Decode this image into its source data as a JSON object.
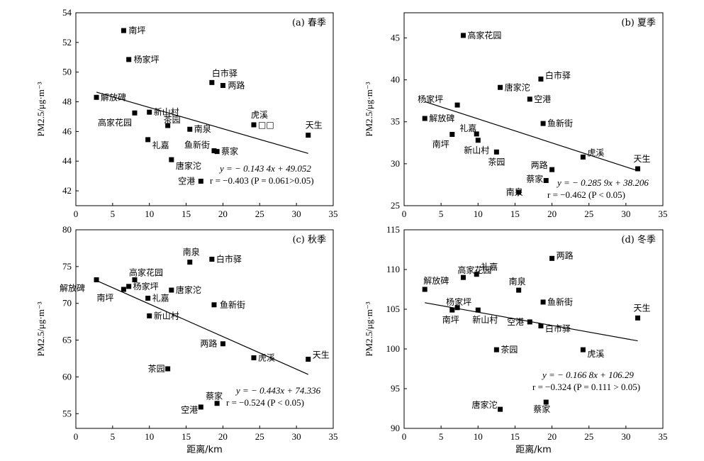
{
  "chart_data": [
    {
      "type": "scatter",
      "panel_label": "(a) 春季",
      "xlim": [
        0,
        35
      ],
      "ylim": [
        41,
        54
      ],
      "xticks": [
        0,
        5,
        10,
        15,
        20,
        25,
        30,
        35
      ],
      "yticks": [
        42,
        44,
        46,
        48,
        50,
        52,
        54
      ],
      "ylabel": "PM2.5/μg·m⁻³",
      "xlabel": "",
      "points": [
        {
          "name": "南坪",
          "x": 6.5,
          "y": 52.8
        },
        {
          "name": "杨家坪",
          "x": 7.2,
          "y": 50.85
        },
        {
          "name": "白市驿",
          "x": 18.5,
          "y": 49.3
        },
        {
          "name": "两路",
          "x": 20.0,
          "y": 49.1
        },
        {
          "name": "解放碑",
          "x": 2.8,
          "y": 48.3
        },
        {
          "name": "高家花园",
          "x": 8.0,
          "y": 47.25
        },
        {
          "name": "新山村",
          "x": 10.0,
          "y": 47.3
        },
        {
          "name": "虎溪",
          "x": 24.2,
          "y": 46.45
        },
        {
          "name": "□□",
          "x": 24.2,
          "y": 46.45
        },
        {
          "name": "茶园",
          "x": 12.5,
          "y": 46.4
        },
        {
          "name": "南泉",
          "x": 15.5,
          "y": 46.15
        },
        {
          "name": "天生",
          "x": 31.6,
          "y": 45.75
        },
        {
          "name": "礼嘉",
          "x": 9.8,
          "y": 45.45
        },
        {
          "name": "鱼新街",
          "x": 18.8,
          "y": 44.7
        },
        {
          "name": "蔡家",
          "x": 19.2,
          "y": 44.65
        },
        {
          "name": "唐家沱",
          "x": 13.0,
          "y": 44.1
        },
        {
          "name": "空港",
          "x": 17.0,
          "y": 42.65
        }
      ],
      "fit": {
        "slope": -0.1434,
        "intercept": 49.052,
        "x_range": [
          2.8,
          31.6
        ]
      },
      "equation": "y = − 0.143 4x + 49.052",
      "stats": "r = −0.403 (P = 0.061>0.05)"
    },
    {
      "type": "scatter",
      "panel_label": "(b) 夏季",
      "xlim": [
        0,
        35
      ],
      "ylim": [
        25,
        48
      ],
      "xticks": [
        0,
        5,
        10,
        15,
        20,
        25,
        30,
        35
      ],
      "yticks": [
        25,
        30,
        35,
        40,
        45
      ],
      "ylabel": "PM2.5/μg·m⁻³",
      "xlabel": "",
      "points": [
        {
          "name": "高家花园",
          "x": 8.0,
          "y": 45.3
        },
        {
          "name": "白市驿",
          "x": 18.5,
          "y": 40.1
        },
        {
          "name": "唐家沱",
          "x": 13.0,
          "y": 39.1
        },
        {
          "name": "空港",
          "x": 17.0,
          "y": 37.7
        },
        {
          "name": "杨家坪",
          "x": 7.2,
          "y": 37.0
        },
        {
          "name": "解放碑",
          "x": 2.8,
          "y": 35.4
        },
        {
          "name": "鱼新街",
          "x": 18.8,
          "y": 34.8
        },
        {
          "name": "礼嘉",
          "x": 9.8,
          "y": 33.55
        },
        {
          "name": "南坪",
          "x": 6.5,
          "y": 33.5
        },
        {
          "name": "新山村",
          "x": 10.0,
          "y": 32.8
        },
        {
          "name": "茶园",
          "x": 12.5,
          "y": 31.4
        },
        {
          "name": "虎溪",
          "x": 24.2,
          "y": 30.8
        },
        {
          "name": "天生",
          "x": 31.6,
          "y": 29.4
        },
        {
          "name": "两路",
          "x": 20.0,
          "y": 29.3
        },
        {
          "name": "蔡家",
          "x": 19.2,
          "y": 28.0
        },
        {
          "name": "南泉",
          "x": 15.5,
          "y": 26.6
        }
      ],
      "fit": {
        "slope": -0.2859,
        "intercept": 38.206,
        "x_range": [
          2.8,
          31.6
        ]
      },
      "equation": "y = − 0.285 9x + 38.206",
      "stats": "r = −0.462 (P < 0.05)"
    },
    {
      "type": "scatter",
      "panel_label": "(c) 秋季",
      "xlim": [
        0,
        35
      ],
      "ylim": [
        53,
        80
      ],
      "xticks": [
        0,
        5,
        10,
        15,
        20,
        25,
        30,
        35
      ],
      "yticks": [
        55,
        60,
        65,
        70,
        75,
        80
      ],
      "ylabel": "PM2.5/μg·m⁻³",
      "xlabel": "距离/km",
      "points": [
        {
          "name": "白市驿",
          "x": 18.5,
          "y": 76.0
        },
        {
          "name": "南泉",
          "x": 15.5,
          "y": 75.6
        },
        {
          "name": "解放碑",
          "x": 2.8,
          "y": 73.2
        },
        {
          "name": "高家花园",
          "x": 8.0,
          "y": 73.2
        },
        {
          "name": "杨家坪",
          "x": 7.2,
          "y": 72.3
        },
        {
          "name": "南坪",
          "x": 6.5,
          "y": 71.9
        },
        {
          "name": "唐家沱",
          "x": 13.0,
          "y": 71.8
        },
        {
          "name": "礼嘉",
          "x": 9.8,
          "y": 70.7
        },
        {
          "name": "鱼新街",
          "x": 18.8,
          "y": 69.8
        },
        {
          "name": "新山村",
          "x": 10.0,
          "y": 68.3
        },
        {
          "name": "两路",
          "x": 20.0,
          "y": 64.5
        },
        {
          "name": "虎溪",
          "x": 24.2,
          "y": 62.6
        },
        {
          "name": "天生",
          "x": 31.6,
          "y": 62.4
        },
        {
          "name": "茶园",
          "x": 12.5,
          "y": 61.1
        },
        {
          "name": "蔡家",
          "x": 19.2,
          "y": 56.4
        },
        {
          "name": "空港",
          "x": 17.0,
          "y": 55.9
        }
      ],
      "fit": {
        "slope": -0.443,
        "intercept": 74.336,
        "x_range": [
          2.8,
          31.6
        ]
      },
      "equation": "y = − 0.443x + 74.336",
      "stats": "r = −0.524 (P < 0.05)"
    },
    {
      "type": "scatter",
      "panel_label": "(d) 冬季",
      "xlim": [
        0,
        35
      ],
      "ylim": [
        90,
        115
      ],
      "xticks": [
        0,
        5,
        10,
        15,
        20,
        25,
        30,
        35
      ],
      "yticks": [
        90,
        95,
        100,
        105,
        110,
        115
      ],
      "ylabel": "PM2.5/μg·m⁻³",
      "xlabel": "距离/km",
      "points": [
        {
          "name": "两路",
          "x": 20.0,
          "y": 111.4
        },
        {
          "name": "礼嘉",
          "x": 9.8,
          "y": 109.4
        },
        {
          "name": "高家花园",
          "x": 8.0,
          "y": 109.0
        },
        {
          "name": "解放碑",
          "x": 2.8,
          "y": 107.5
        },
        {
          "name": "南泉",
          "x": 15.5,
          "y": 107.4
        },
        {
          "name": "鱼新街",
          "x": 18.8,
          "y": 105.9
        },
        {
          "name": "杨家坪",
          "x": 7.2,
          "y": 105.2
        },
        {
          "name": "南坪",
          "x": 6.5,
          "y": 104.9
        },
        {
          "name": "新山村",
          "x": 10.0,
          "y": 104.9
        },
        {
          "name": "天生",
          "x": 31.6,
          "y": 103.9
        },
        {
          "name": "空港",
          "x": 17.0,
          "y": 103.4
        },
        {
          "name": "白市驿",
          "x": 18.5,
          "y": 102.9
        },
        {
          "name": "茶园",
          "x": 12.5,
          "y": 99.9
        },
        {
          "name": "虎溪",
          "x": 24.2,
          "y": 99.9
        },
        {
          "name": "蔡家",
          "x": 19.2,
          "y": 93.3
        },
        {
          "name": "唐家沱",
          "x": 13.0,
          "y": 92.4
        }
      ],
      "fit": {
        "slope": -0.1668,
        "intercept": 106.29,
        "x_range": [
          2.8,
          31.6
        ]
      },
      "equation": "y = − 0.166 8x + 106.29",
      "stats": "r = −0.324 (P = 0.111 > 0.05)"
    }
  ]
}
